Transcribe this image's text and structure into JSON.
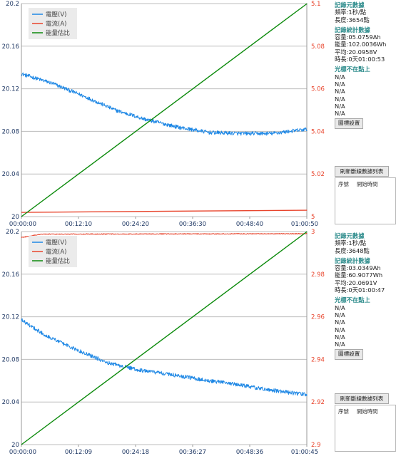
{
  "panels": [
    {
      "chart_data": {
        "type": "line",
        "x_ticks": [
          "00:00:00",
          "00:12:10",
          "00:24:20",
          "00:36:30",
          "00:48:40",
          "01:00:50"
        ],
        "x_range_seconds": [
          0,
          3650
        ],
        "y_left": {
          "ticks": [
            "20",
            "20.04",
            "20.08",
            "20.12",
            "20.16",
            "20.2"
          ],
          "range": [
            20,
            20.2
          ]
        },
        "y_right": {
          "ticks": [
            "5",
            "5.02",
            "5.04",
            "5.06",
            "5.08",
            "5.1"
          ],
          "range": [
            5,
            5.1
          ]
        },
        "legend": [
          "電壓(V)",
          "電流(A)",
          "能量估比"
        ],
        "grid": true,
        "legend_position": "top-left",
        "series": [
          {
            "name": "電壓(V)",
            "axis": "left",
            "color": "#1f88e5",
            "x": [
              0,
              400,
              800,
              1200,
              1600,
              2000,
              2400,
              2800,
              3200,
              3654
            ],
            "y": [
              20.134,
              20.125,
              20.113,
              20.1,
              20.091,
              20.084,
              20.079,
              20.078,
              20.078,
              20.082
            ],
            "noise": 0.0018
          },
          {
            "name": "電流(A)",
            "axis": "right",
            "color": "#e8442c",
            "x": [
              0,
              3654
            ],
            "y": [
              5.002,
              5.003
            ],
            "noise": 0
          },
          {
            "name": "能量估比",
            "axis": "right",
            "color": "#0b8a0b",
            "x": [
              0,
              3654
            ],
            "y": [
              5.0,
              5.1
            ],
            "noise": 0
          }
        ]
      },
      "side": {
        "meta_title": "記錄元數據",
        "meta_lines": [
          "頻率:1秒/點",
          "長度:3654點"
        ],
        "stats_title": "記錄統計數據",
        "stats_lines": [
          "容量:05.0759Ah",
          "能量:102.0036Wh",
          "平均:20.0958V",
          "時長:0天01:00:53"
        ],
        "cursor_title": "光標不在點上",
        "cursor_lines": [
          "N/A",
          "N/A",
          "N/A",
          "N/A",
          "N/A",
          "N/A"
        ],
        "legend_btn": "圖標設置",
        "refresh_btn": "刷新斷線數據列表",
        "list_headers": [
          "序號",
          "開始時間"
        ]
      }
    },
    {
      "chart_data": {
        "type": "line",
        "x_ticks": [
          "00:00:00",
          "00:12:09",
          "00:24:18",
          "00:36:27",
          "00:48:36",
          "01:00:45"
        ],
        "x_range_seconds": [
          0,
          3645
        ],
        "y_left": {
          "ticks": [
            "20",
            "20.04",
            "20.08",
            "20.12",
            "20.16",
            "20.2"
          ],
          "range": [
            20,
            20.2
          ]
        },
        "y_right": {
          "ticks": [
            "2.9",
            "2.92",
            "2.94",
            "2.96",
            "2.98",
            "3"
          ],
          "range": [
            2.9,
            3
          ]
        },
        "legend": [
          "電壓(V)",
          "電流(A)",
          "能量估比"
        ],
        "grid": true,
        "legend_position": "top-left",
        "series": [
          {
            "name": "電壓(V)",
            "axis": "left",
            "color": "#1f88e5",
            "x": [
              0,
              300,
              700,
              1100,
              1500,
              1900,
              2300,
              2700,
              3100,
              3500,
              3648
            ],
            "y": [
              20.117,
              20.103,
              20.089,
              20.077,
              20.07,
              20.066,
              20.061,
              20.057,
              20.052,
              20.048,
              20.047
            ],
            "noise": 0.0018
          },
          {
            "name": "電流(A)",
            "axis": "right",
            "color": "#e8442c",
            "x": [
              0,
              250,
              3648
            ],
            "y": [
              2.9972,
              2.9988,
              2.999
            ],
            "noise": 0.0002
          },
          {
            "name": "能量估比",
            "axis": "right",
            "color": "#0b8a0b",
            "x": [
              0,
              3648
            ],
            "y": [
              2.9,
              3.0
            ],
            "noise": 0
          }
        ]
      },
      "side": {
        "meta_title": "記錄元數據",
        "meta_lines": [
          "頻率:1秒/點",
          "長度:3648點"
        ],
        "stats_title": "記錄統計數據",
        "stats_lines": [
          "容量:03.0349Ah",
          "能量:60.9077Wh",
          "平均:20.0691V",
          "時長:0天01:00:47"
        ],
        "cursor_title": "光標不在點上",
        "cursor_lines": [
          "N/A",
          "N/A",
          "N/A",
          "N/A",
          "N/A",
          "N/A"
        ],
        "legend_btn": "圖標設置",
        "refresh_btn": "刷新斷線數據列表",
        "list_headers": [
          "序號",
          "開始時間"
        ]
      }
    }
  ]
}
